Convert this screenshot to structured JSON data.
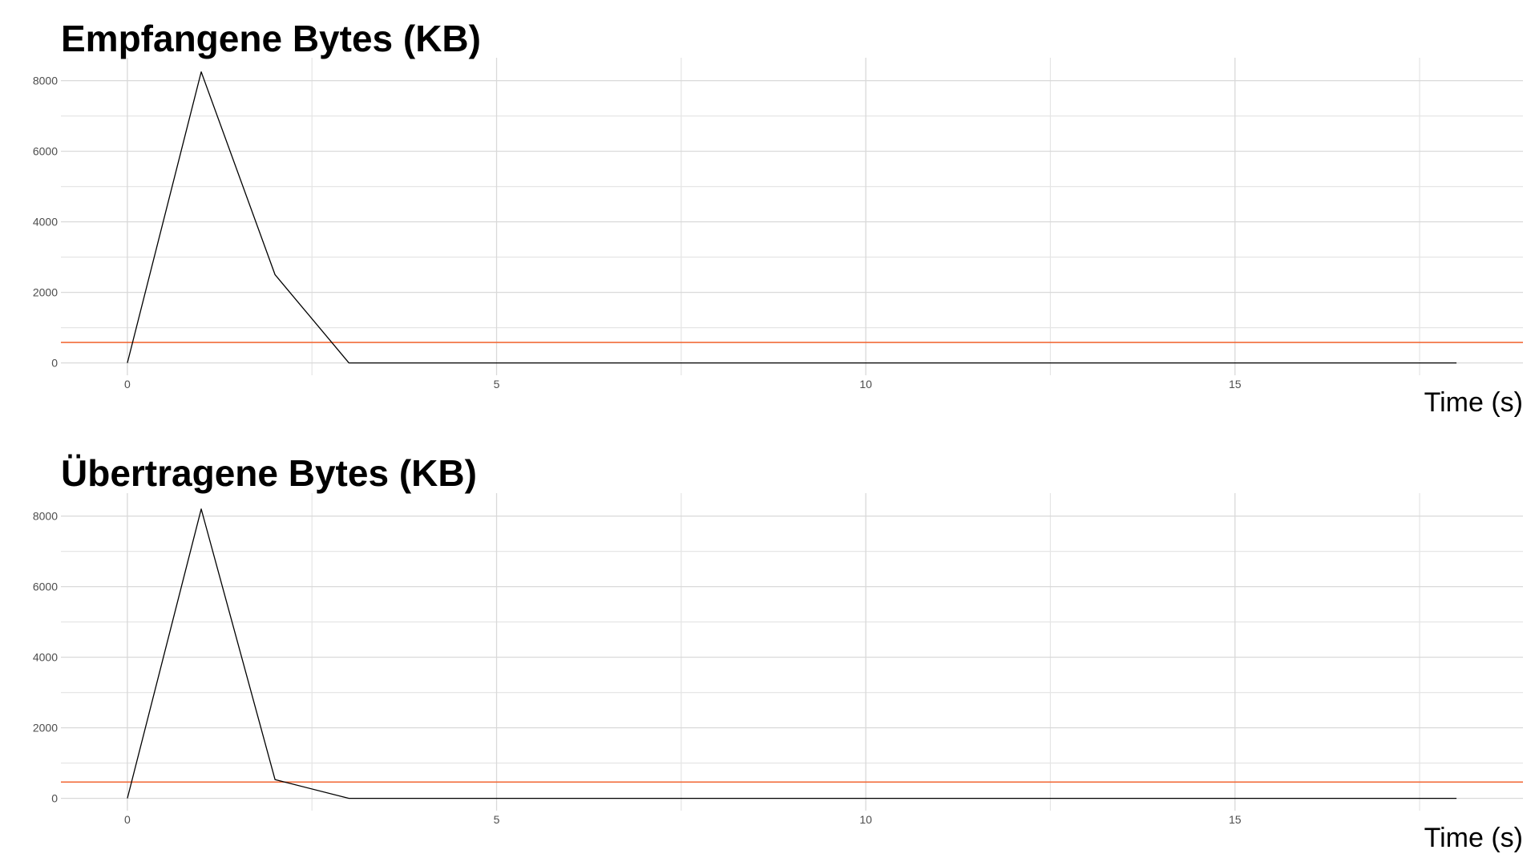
{
  "chart_data": [
    {
      "type": "line",
      "title": "Empfangene Bytes (KB)",
      "xlabel": "Time (s)",
      "ylabel": "",
      "xlim": [
        -0.9,
        18.9
      ],
      "ylim": [
        -350,
        8650
      ],
      "x_ticks": [
        0,
        5,
        10,
        15
      ],
      "x_tick_labels": [
        "0",
        "5",
        "10",
        "15"
      ],
      "y_ticks": [
        0,
        2000,
        4000,
        6000,
        8000
      ],
      "y_tick_labels": [
        "0",
        "2000",
        "4000",
        "6000",
        "8000"
      ],
      "grid": true,
      "series": [
        {
          "x": [
            0,
            1,
            2,
            3,
            4,
            5,
            6,
            7,
            8,
            9,
            10,
            11,
            12,
            13,
            14,
            15,
            16,
            17,
            18
          ],
          "y": [
            0,
            8250,
            2500,
            0,
            0,
            0,
            0,
            0,
            0,
            0,
            0,
            0,
            0,
            0,
            0,
            0,
            0,
            0,
            0
          ],
          "color": "#000000"
        }
      ],
      "hline": {
        "y": 580,
        "color": "#f26b3a"
      }
    },
    {
      "type": "line",
      "title": "Übertragene Bytes (KB)",
      "xlabel": "Time (s)",
      "ylabel": "",
      "xlim": [
        -0.9,
        18.9
      ],
      "ylim": [
        -350,
        8650
      ],
      "x_ticks": [
        0,
        5,
        10,
        15
      ],
      "x_tick_labels": [
        "0",
        "5",
        "10",
        "15"
      ],
      "y_ticks": [
        0,
        2000,
        4000,
        6000,
        8000
      ],
      "y_tick_labels": [
        "0",
        "2000",
        "4000",
        "6000",
        "8000"
      ],
      "grid": true,
      "series": [
        {
          "x": [
            0,
            1,
            2,
            3,
            4,
            5,
            6,
            7,
            8,
            9,
            10,
            11,
            12,
            13,
            14,
            15,
            16,
            17,
            18
          ],
          "y": [
            0,
            8200,
            530,
            0,
            0,
            0,
            0,
            0,
            0,
            0,
            0,
            0,
            0,
            0,
            0,
            0,
            0,
            0,
            0
          ],
          "color": "#000000"
        }
      ],
      "hline": {
        "y": 460,
        "color": "#f26b3a"
      }
    }
  ]
}
